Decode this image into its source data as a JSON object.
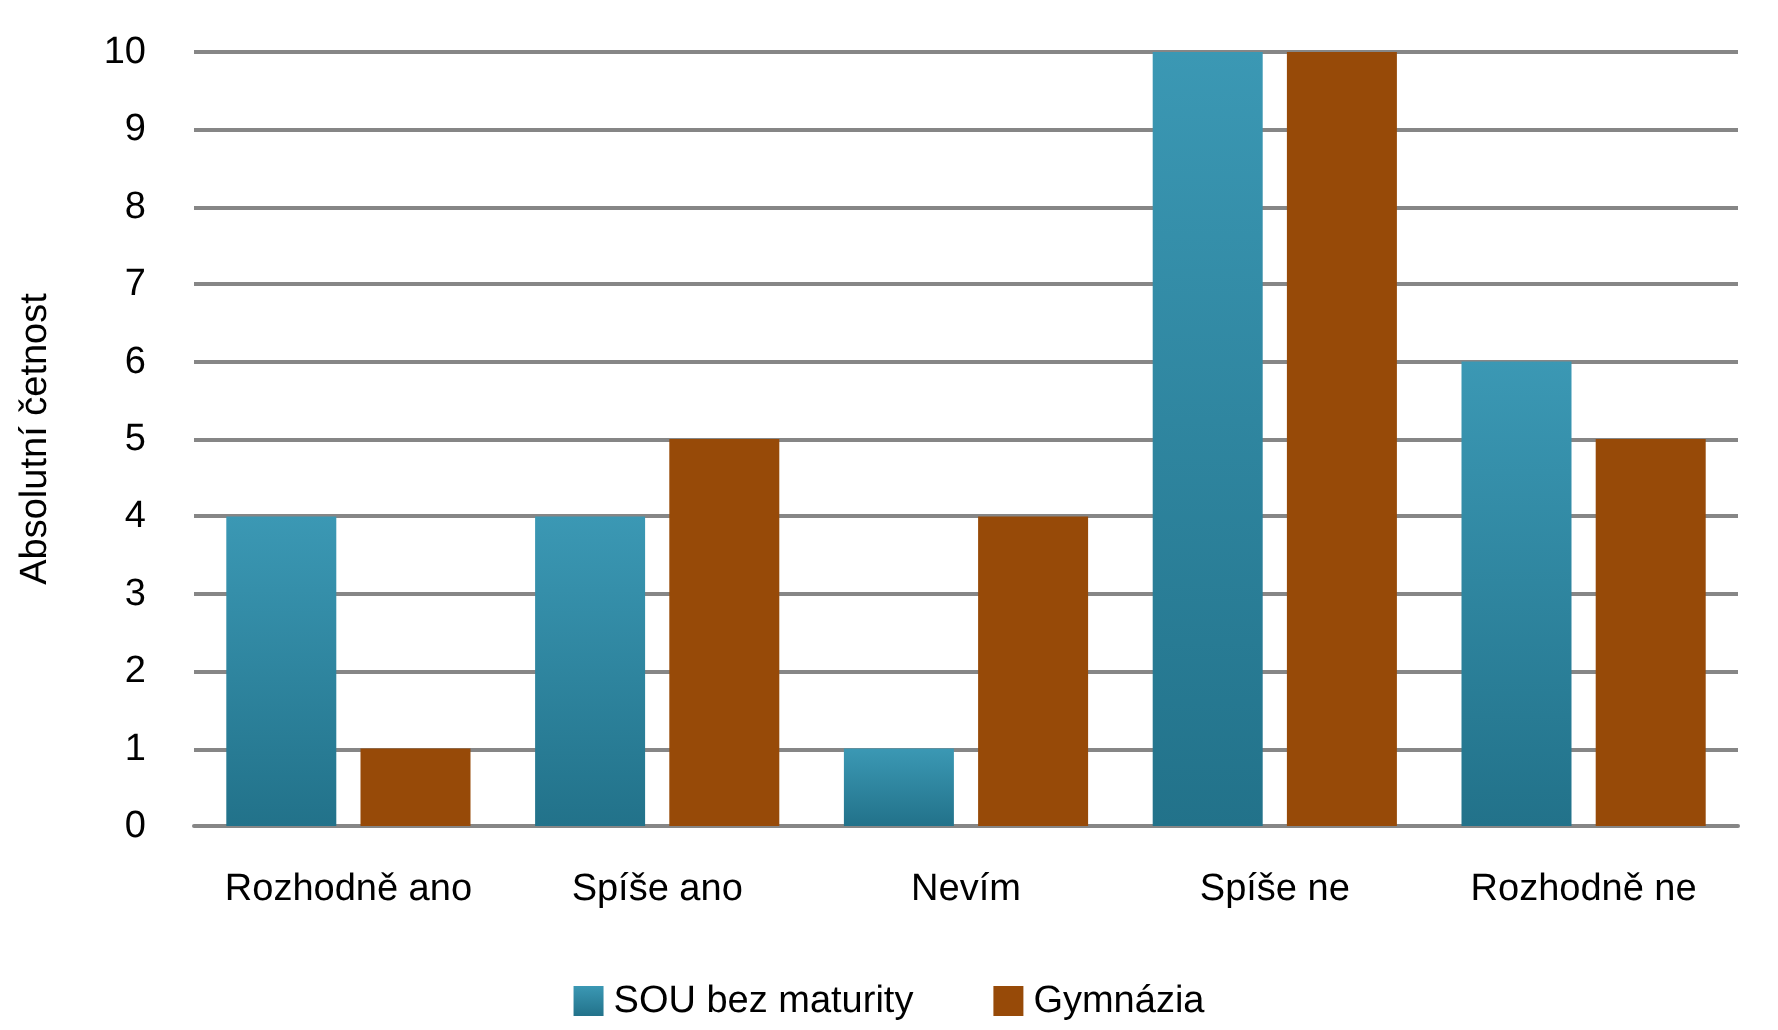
{
  "chart_data": {
    "type": "bar",
    "ylabel": "Absolutní četnost",
    "categories": [
      "Rozhodně ano",
      "Spíše ano",
      "Nevím",
      "Spíše ne",
      "Rozhodně ne"
    ],
    "series": [
      {
        "name": "SOU bez maturity",
        "color": "#2a8fad",
        "values": [
          4,
          4,
          1,
          10,
          6
        ]
      },
      {
        "name": "Gymnázia",
        "color": "#974a08",
        "values": [
          1,
          5,
          4,
          10,
          5
        ]
      }
    ],
    "ylim": [
      0,
      10
    ],
    "yticks": [
      0,
      1,
      2,
      3,
      4,
      5,
      6,
      7,
      8,
      9,
      10
    ],
    "grid": "y",
    "legend": "bottom"
  }
}
